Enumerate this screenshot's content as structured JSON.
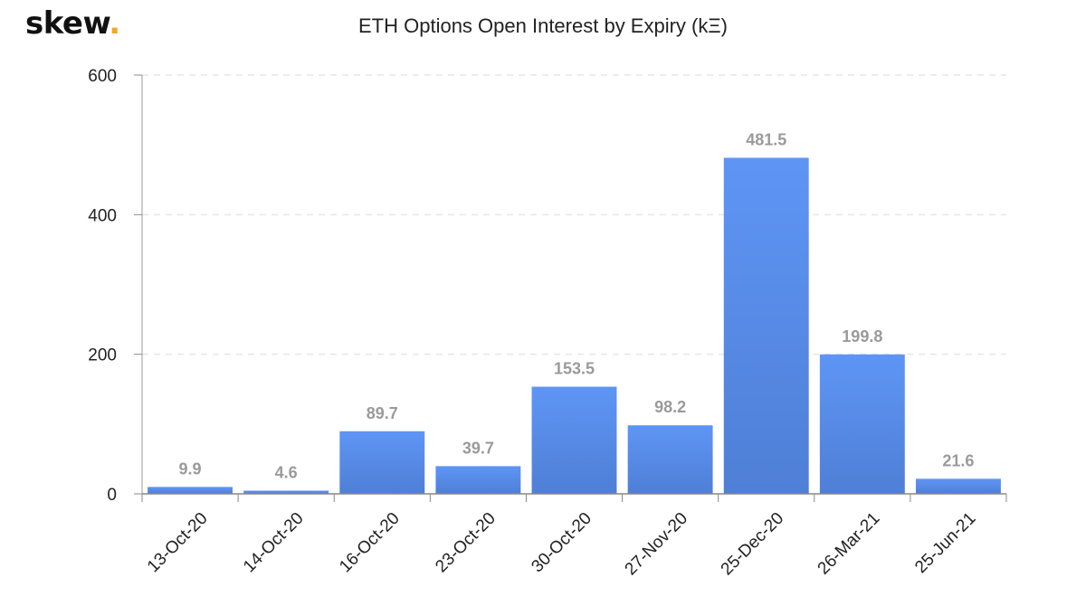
{
  "logo": {
    "text": "skew",
    "dot": "."
  },
  "chart_data": {
    "type": "bar",
    "title": "ETH Options Open Interest by Expiry (kΞ)",
    "categories": [
      "13-Oct-20",
      "14-Oct-20",
      "16-Oct-20",
      "23-Oct-20",
      "30-Oct-20",
      "27-Nov-20",
      "25-Dec-20",
      "26-Mar-21",
      "25-Jun-21"
    ],
    "values": [
      9.9,
      4.6,
      89.7,
      39.7,
      153.5,
      98.2,
      481.5,
      199.8,
      21.6
    ],
    "data_labels": [
      "9.9",
      "4.6",
      "89.7",
      "39.7",
      "153.5",
      "98.2",
      "481.5",
      "199.8",
      "21.6"
    ],
    "ylim": [
      0,
      600
    ],
    "yticks": [
      0,
      200,
      400,
      600
    ],
    "ytick_labels": [
      "0",
      "200",
      "400",
      "600"
    ],
    "grid": "horizontal dashed",
    "colors": {
      "bar_top": "#5e95f5",
      "bar_bottom": "#4f7fd6",
      "data_label": "#9a9a9a",
      "grid": "#e6e6e6",
      "logo_dot": "#f5a623"
    }
  }
}
